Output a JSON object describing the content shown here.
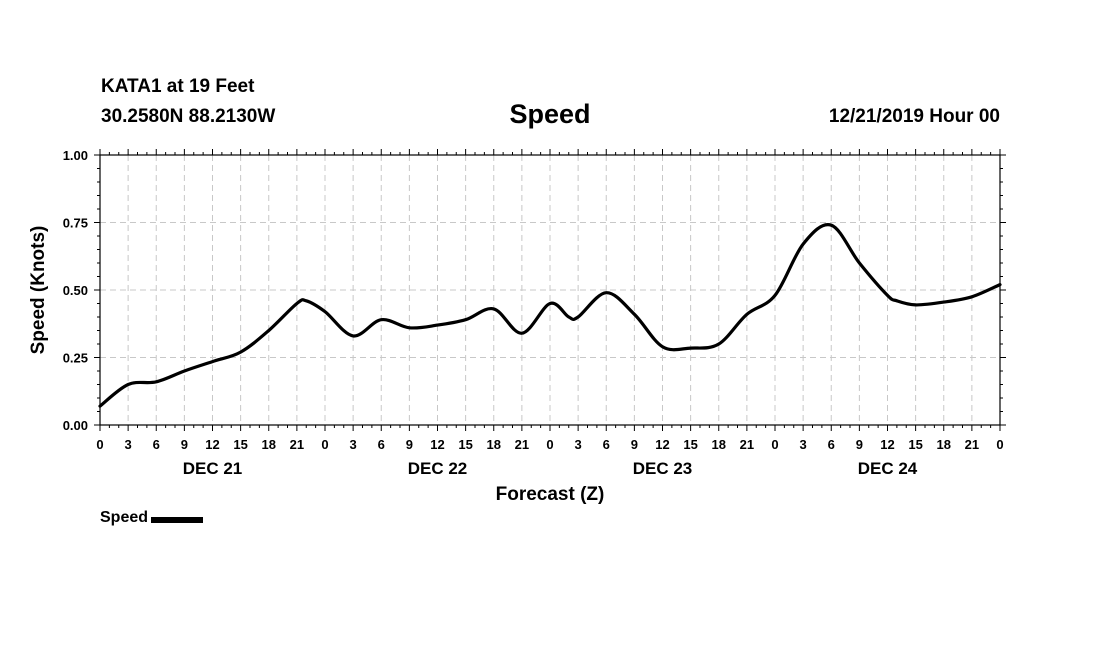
{
  "header": {
    "station": "KATA1 at 19 Feet",
    "coordinates": "30.2580N 88.2130W",
    "title": "Speed",
    "timestamp": "12/21/2019 Hour 00"
  },
  "legend": {
    "label": "Speed"
  },
  "chart_data": {
    "type": "line",
    "title": "Speed",
    "xlabel": "Forecast (Z)",
    "ylabel": "Speed (Knots)",
    "ylim": [
      0,
      1
    ],
    "xlim": [
      0,
      96
    ],
    "y_ticks": [
      "0.00",
      "0.25",
      "0.50",
      "0.75",
      "1.00"
    ],
    "x_tick_labels": [
      "0",
      "3",
      "6",
      "9",
      "12",
      "15",
      "18",
      "21",
      "0",
      "3",
      "6",
      "9",
      "12",
      "15",
      "18",
      "21",
      "0",
      "3",
      "6",
      "9",
      "12",
      "15",
      "18",
      "21",
      "0",
      "3",
      "6",
      "9",
      "12",
      "15",
      "18",
      "21",
      "0"
    ],
    "day_labels": [
      "DEC 21",
      "DEC 22",
      "DEC 23",
      "DEC 24"
    ],
    "grid": true,
    "legend": "bottom-left",
    "series": [
      {
        "name": "Speed",
        "color": "#000000",
        "x": [
          0,
          3,
          6,
          9,
          12,
          15,
          18,
          21,
          22,
          24,
          27,
          30,
          33,
          36,
          39,
          42,
          45,
          48,
          50,
          51,
          54,
          57,
          60,
          63,
          66,
          69,
          72,
          75,
          78,
          81,
          84,
          85,
          87,
          90,
          93,
          96
        ],
        "y": [
          0.07,
          0.15,
          0.16,
          0.2,
          0.235,
          0.27,
          0.35,
          0.45,
          0.46,
          0.42,
          0.33,
          0.39,
          0.36,
          0.37,
          0.39,
          0.43,
          0.34,
          0.45,
          0.4,
          0.4,
          0.49,
          0.41,
          0.29,
          0.285,
          0.3,
          0.41,
          0.48,
          0.67,
          0.74,
          0.6,
          0.48,
          0.46,
          0.445,
          0.455,
          0.475,
          0.52
        ]
      }
    ]
  }
}
